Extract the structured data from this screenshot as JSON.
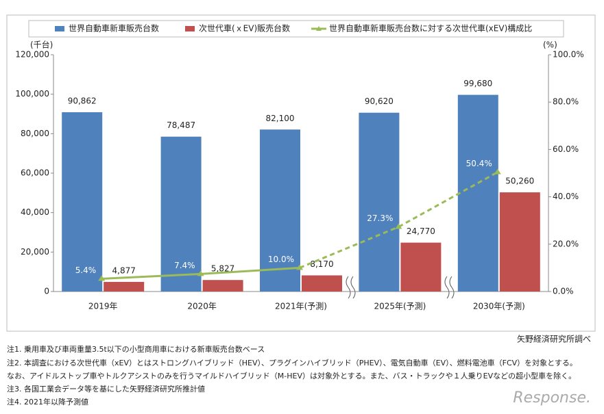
{
  "chart_data": {
    "type": "bar_line",
    "y_unit_label": "(千台)",
    "y2_unit_label": "(%)",
    "categories": [
      "2019年",
      "2020年",
      "2021年(予測)",
      "2025年(予測)",
      "2030年(予測)"
    ],
    "series": [
      {
        "name": "世界自動車新車販売台数",
        "color": "#4f81bd",
        "type": "bar",
        "values": [
          90862,
          78487,
          82100,
          90620,
          99680
        ],
        "value_labels": [
          "90,862",
          "78,487",
          "82,100",
          "90,620",
          "99,680"
        ]
      },
      {
        "name": "次世代車(ｘEV)販売台数",
        "color": "#c0504d",
        "type": "bar",
        "values": [
          4877,
          5827,
          8170,
          24770,
          50260
        ],
        "value_labels": [
          "4,877",
          "5,827",
          "8,170",
          "24,770",
          "50,260"
        ]
      },
      {
        "name": "世界自動車新車販売台数に対する次世代車(xEV)構成比",
        "color": "#9bbb59",
        "type": "line",
        "axis": "y2",
        "dashed_from": 2,
        "values": [
          5.4,
          7.4,
          10.0,
          27.3,
          50.4
        ],
        "value_labels": [
          "5.4%",
          "7.4%",
          "10.0%",
          "27.3%",
          "50.4%"
        ]
      }
    ],
    "ylim": [
      0,
      120000
    ],
    "yticks": [
      {
        "value": 0,
        "label": "0"
      },
      {
        "value": 20000,
        "label": "20,000"
      },
      {
        "value": 40000,
        "label": "40,000"
      },
      {
        "value": 60000,
        "label": "60,000"
      },
      {
        "value": 80000,
        "label": "80,000"
      },
      {
        "value": 100000,
        "label": "100,000"
      },
      {
        "value": 120000,
        "label": "120,000"
      }
    ],
    "y2lim": [
      0,
      100
    ],
    "y2ticks": [
      {
        "value": 0,
        "label": "0.0%"
      },
      {
        "value": 20,
        "label": "20.0%"
      },
      {
        "value": 40,
        "label": "40.0%"
      },
      {
        "value": 60,
        "label": "60.0%"
      },
      {
        "value": 80,
        "label": "80.0%"
      },
      {
        "value": 100,
        "label": "100.0%"
      }
    ],
    "legend": "top"
  },
  "source": "矢野経済研究所調べ",
  "notes": [
    "注1.  乗用車及び車両重量3.5t以下の小型商用車における新車販売台数ベース",
    "注2.  本調査における次世代車（xEV）とはストロングハイブリッド（HEV）、プラグインハイブリッド（PHEV）、電気自動車（EV）、燃料電池車（FCV）を対象とする。",
    "なお、アイドルストップ車やトルクアシストのみを行うマイルドハイブリッド（M-HEV）は対象外とする。また、バス・トラックや１人乗りEVなどの超小型車を除く。",
    "注3.  各国工業会データ等を基にした矢野経済研究所推計値",
    "注4.  2021年以降予測値"
  ],
  "watermark": "Response."
}
